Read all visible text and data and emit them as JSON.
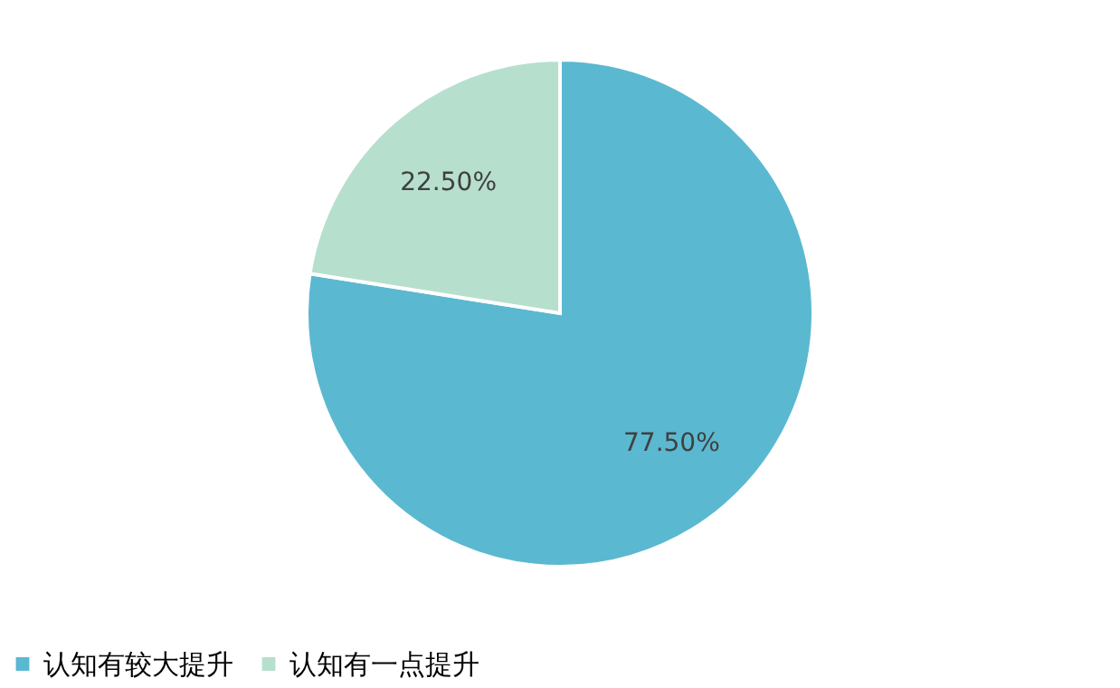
{
  "chart_data": {
    "type": "pie",
    "categories": [
      "认知有较大提升",
      "认知有一点提升"
    ],
    "values": [
      77.5,
      22.5
    ],
    "colors": [
      "#5bb8d1",
      "#b7dfce"
    ],
    "value_labels": [
      "77.50%",
      "22.50%"
    ],
    "legend": "bottom"
  }
}
